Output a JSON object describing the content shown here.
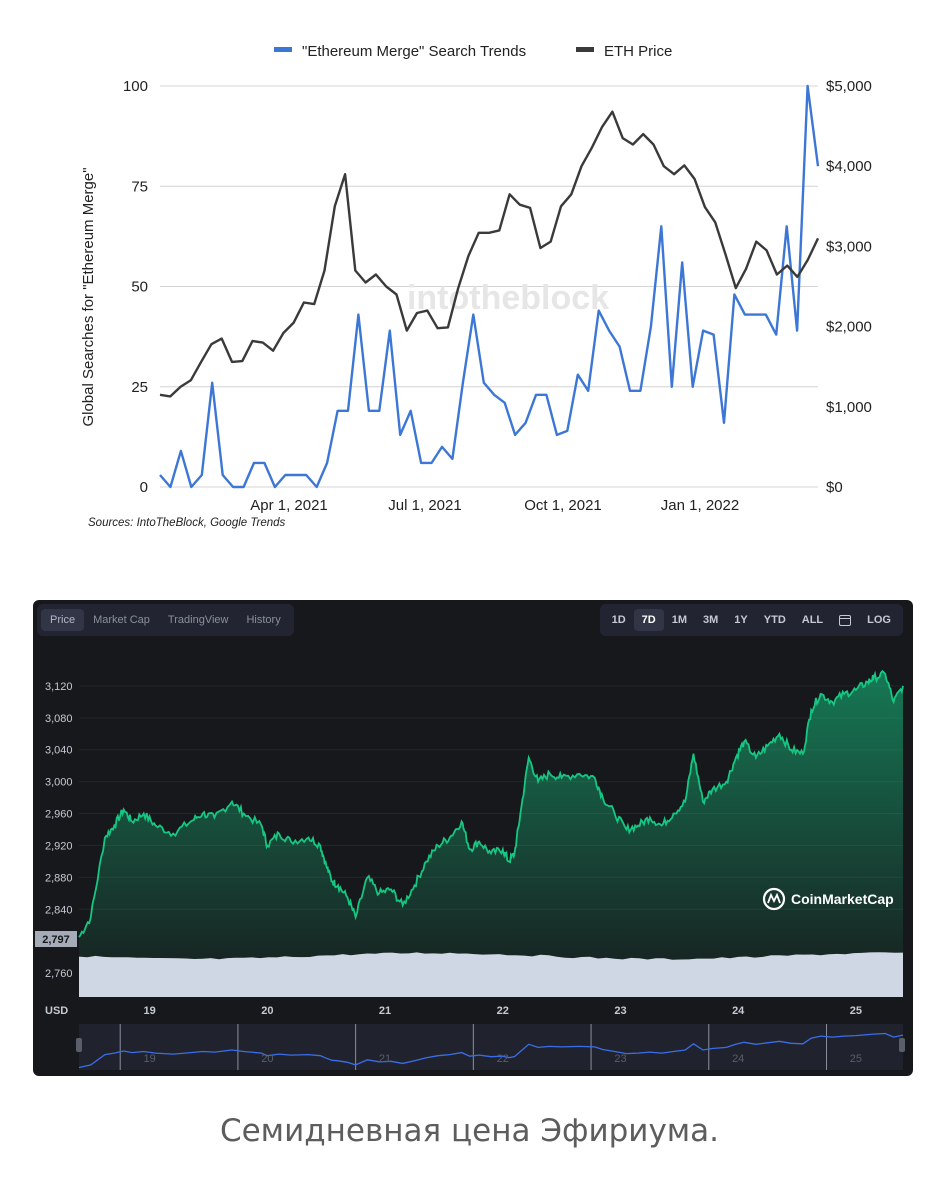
{
  "chart_data": [
    {
      "type": "line",
      "legend": [
        "\"Ethereum Merge\" Search Trends",
        "ETH Price"
      ],
      "legend_placement": "top",
      "ylabel": "Global Searches for \"Ethereum Merge\"",
      "y_left_ticks": [
        "0",
        "25",
        "50",
        "75",
        "100"
      ],
      "y_right_ticks": [
        "$0",
        "$1,000",
        "$2,000",
        "$3,000",
        "$4,000",
        "$5,000"
      ],
      "x_ticks": [
        "Apr 1, 2021",
        "Jul 1, 2021",
        "Oct 1, 2021",
        "Jan 1, 2022"
      ],
      "ylim_left": [
        0,
        100
      ],
      "ylim_right": [
        0,
        5000
      ],
      "watermark": "intotheblock",
      "source": "Sources: IntoTheBlock, Google Trends",
      "colors": {
        "search": "#3d77d6",
        "price": "#3a3a3a",
        "grid": "#d4d4d4"
      },
      "x_weeks": [
        0,
        1,
        2,
        3,
        4,
        5,
        6,
        7,
        8,
        9,
        10,
        11,
        12,
        13,
        14,
        15,
        16,
        17,
        18,
        19,
        20,
        21,
        22,
        23,
        24,
        25,
        26,
        27,
        28,
        29,
        30,
        31,
        32,
        33,
        34,
        35,
        36,
        37,
        38,
        39,
        40,
        41,
        42,
        43,
        44,
        45,
        46,
        47,
        48,
        49,
        50,
        51,
        52,
        53,
        54,
        55,
        56,
        57,
        58,
        59,
        60,
        61,
        62,
        63,
        64,
        65,
        66,
        67,
        68,
        69,
        70,
        71,
        72,
        73,
        74,
        75,
        76,
        77,
        78,
        79
      ],
      "series": [
        {
          "name": "\"Ethereum Merge\" Search Trends",
          "axis": "left",
          "values": [
            3,
            0,
            9,
            0,
            3,
            26,
            3,
            0,
            0,
            6,
            6,
            0,
            3,
            3,
            3,
            0,
            6,
            19,
            19,
            43,
            19,
            19,
            39,
            13,
            19,
            6,
            6,
            10,
            7,
            26,
            43,
            26,
            23,
            21,
            13,
            16,
            23,
            23,
            13,
            14,
            28,
            24,
            44,
            39,
            35,
            24,
            24,
            40,
            65,
            25,
            56,
            25,
            39,
            38,
            16,
            48,
            43,
            43,
            43,
            38,
            65,
            39,
            100,
            80
          ],
          "x_offset": 0
        },
        {
          "name": "ETH Price",
          "axis": "right",
          "values": [
            1150,
            1130,
            1250,
            1330,
            1560,
            1780,
            1850,
            1560,
            1570,
            1820,
            1800,
            1700,
            1920,
            2050,
            2300,
            2280,
            2700,
            3500,
            3900,
            2700,
            2550,
            2650,
            2500,
            2400,
            1950,
            2170,
            2200,
            1980,
            1990,
            2480,
            2880,
            3170,
            3170,
            3200,
            3650,
            3520,
            3480,
            2980,
            3060,
            3500,
            3650,
            4000,
            4230,
            4490,
            4680,
            4350,
            4270,
            4400,
            4270,
            4000,
            3900,
            4010,
            3840,
            3490,
            3300,
            2900,
            2480,
            2720,
            3060,
            2950,
            2650,
            2760,
            2620,
            2830,
            3100
          ],
          "x_offset": 0
        }
      ]
    },
    {
      "type": "area",
      "provider": "CoinMarketCap",
      "tabs": [
        "Price",
        "Market Cap",
        "TradingView",
        "History"
      ],
      "active_tab": "Price",
      "ranges": [
        "1D",
        "7D",
        "1M",
        "3M",
        "1Y",
        "YTD",
        "ALL",
        "LOG"
      ],
      "active_range": "7D",
      "y_ticks": [
        "3,120",
        "3,080",
        "3,040",
        "3,000",
        "2,960",
        "2,920",
        "2,880",
        "2,840",
        "2,760"
      ],
      "y_tick_values": [
        3120,
        3080,
        3040,
        3000,
        2960,
        2920,
        2880,
        2840,
        2760
      ],
      "price_marker": "2,797",
      "price_marker_value": 2797,
      "x_ticks": [
        "19",
        "20",
        "21",
        "22",
        "23",
        "24",
        "25"
      ],
      "navigator_ticks": [
        "19",
        "20",
        "21",
        "22",
        "23",
        "24",
        "25"
      ],
      "currency": "USD",
      "ylim": [
        2730,
        3150
      ],
      "xlim_days": [
        18.4,
        25.4
      ],
      "price_points": [
        [
          18.4,
          2805
        ],
        [
          18.5,
          2830
        ],
        [
          18.62,
          2930
        ],
        [
          18.7,
          2945
        ],
        [
          18.78,
          2965
        ],
        [
          18.85,
          2950
        ],
        [
          18.95,
          2960
        ],
        [
          19.05,
          2945
        ],
        [
          19.2,
          2935
        ],
        [
          19.35,
          2950
        ],
        [
          19.45,
          2960
        ],
        [
          19.55,
          2955
        ],
        [
          19.7,
          2975
        ],
        [
          19.8,
          2960
        ],
        [
          19.95,
          2945
        ],
        [
          20.0,
          2920
        ],
        [
          20.1,
          2935
        ],
        [
          20.2,
          2925
        ],
        [
          20.35,
          2930
        ],
        [
          20.45,
          2920
        ],
        [
          20.5,
          2895
        ],
        [
          20.55,
          2875
        ],
        [
          20.6,
          2870
        ],
        [
          20.68,
          2855
        ],
        [
          20.75,
          2830
        ],
        [
          20.85,
          2880
        ],
        [
          20.95,
          2860
        ],
        [
          21.05,
          2865
        ],
        [
          21.15,
          2845
        ],
        [
          21.25,
          2870
        ],
        [
          21.35,
          2900
        ],
        [
          21.45,
          2920
        ],
        [
          21.55,
          2930
        ],
        [
          21.65,
          2950
        ],
        [
          21.72,
          2915
        ],
        [
          21.8,
          2925
        ],
        [
          21.9,
          2910
        ],
        [
          22.0,
          2915
        ],
        [
          22.05,
          2900
        ],
        [
          22.1,
          2910
        ],
        [
          22.15,
          2960
        ],
        [
          22.22,
          3030
        ],
        [
          22.3,
          3000
        ],
        [
          22.4,
          3010
        ],
        [
          22.5,
          3005
        ],
        [
          22.65,
          3010
        ],
        [
          22.78,
          3005
        ],
        [
          22.85,
          2980
        ],
        [
          22.95,
          2960
        ],
        [
          23.05,
          2940
        ],
        [
          23.15,
          2945
        ],
        [
          23.25,
          2955
        ],
        [
          23.35,
          2945
        ],
        [
          23.45,
          2960
        ],
        [
          23.55,
          2975
        ],
        [
          23.62,
          3035
        ],
        [
          23.7,
          2975
        ],
        [
          23.78,
          2990
        ],
        [
          23.9,
          3000
        ],
        [
          23.98,
          3030
        ],
        [
          24.05,
          3050
        ],
        [
          24.15,
          3030
        ],
        [
          24.25,
          3045
        ],
        [
          24.35,
          3060
        ],
        [
          24.45,
          3040
        ],
        [
          24.55,
          3035
        ],
        [
          24.62,
          3090
        ],
        [
          24.7,
          3110
        ],
        [
          24.8,
          3100
        ],
        [
          24.9,
          3110
        ],
        [
          25.0,
          3115
        ],
        [
          25.1,
          3125
        ],
        [
          25.15,
          3130
        ],
        [
          25.25,
          3135
        ],
        [
          25.32,
          3100
        ],
        [
          25.4,
          3120
        ]
      ],
      "colors": {
        "line": "#16c784",
        "background": "#17181b",
        "volume": "#cfd6e4",
        "navigator_line": "#3a6ee8"
      }
    }
  ],
  "caption": "Семидневная цена Эфириума."
}
